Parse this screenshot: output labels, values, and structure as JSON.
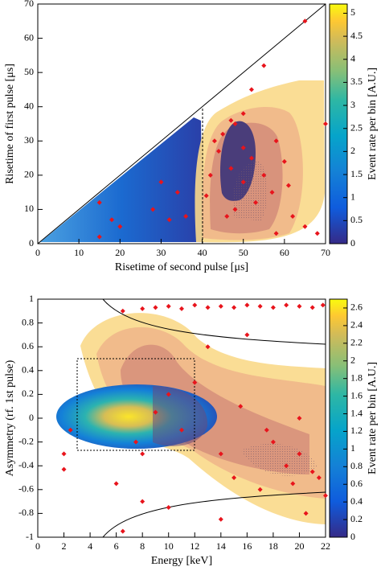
{
  "chart_data": [
    {
      "type": "scatter",
      "x_label": "Risetime of second pulse [μs]",
      "y_label": "Risetime of first pulse [μs]",
      "xlim": [
        0,
        70
      ],
      "ylim": [
        0,
        70
      ],
      "xticks": [
        0,
        10,
        20,
        30,
        40,
        50,
        60,
        70
      ],
      "yticks": [
        0,
        10,
        20,
        30,
        40,
        50,
        60,
        70
      ],
      "color": "#e8141c",
      "x": [
        65,
        55,
        50,
        48,
        45,
        43,
        50,
        52,
        47,
        60,
        55,
        50,
        57,
        61,
        53,
        48,
        46,
        15,
        18,
        15,
        20,
        30,
        28,
        32,
        36,
        34,
        62,
        65,
        58,
        52,
        47,
        44,
        42,
        41,
        58,
        70,
        68
      ],
      "y": [
        65,
        52,
        38,
        35,
        32,
        30,
        28,
        25,
        22,
        24,
        20,
        18,
        15,
        17,
        12,
        10,
        8,
        12,
        7,
        2,
        5,
        18,
        10,
        7,
        8,
        15,
        8,
        5,
        3,
        45,
        36,
        27,
        20,
        14,
        30,
        35,
        3
      ],
      "colorbar": {
        "label": "Event rate per bin [A.U.]",
        "lim": [
          0,
          5.2
        ],
        "ticks": [
          0,
          0.5,
          1,
          1.5,
          2,
          2.5,
          3,
          3.5,
          4,
          4.5,
          5
        ]
      }
    },
    {
      "type": "scatter",
      "x_label": "Energy [keV]",
      "y_label": "Asymmetry (rf. 1st pulse)",
      "xlim": [
        0,
        22
      ],
      "ylim": [
        -1,
        1
      ],
      "xticks": [
        0,
        2,
        4,
        6,
        8,
        10,
        12,
        14,
        16,
        18,
        20,
        22
      ],
      "yticks": [
        -1,
        -0.8,
        -0.6,
        -0.4,
        -0.2,
        0,
        0.2,
        0.4,
        0.6,
        0.8,
        1
      ],
      "color": "#e8141c",
      "x": [
        6.5,
        8,
        9,
        10,
        11,
        12,
        13,
        14,
        15,
        16,
        17,
        18,
        19,
        20,
        21,
        21.8,
        2,
        2,
        2.5,
        6,
        8,
        7.5,
        10,
        9,
        11,
        12,
        14,
        15,
        17,
        18,
        19,
        20,
        21,
        19.5,
        22,
        16,
        13,
        8,
        10,
        14,
        20.5,
        21.5,
        6.5,
        15.5,
        17.5,
        20
      ],
      "y": [
        0.9,
        0.92,
        0.93,
        0.94,
        0.92,
        0.95,
        0.93,
        0.94,
        0.93,
        0.95,
        0.94,
        0.93,
        0.95,
        0.94,
        0.93,
        0.95,
        -0.3,
        -0.43,
        -0.1,
        -0.55,
        -0.3,
        -0.2,
        0.2,
        0.05,
        -0.1,
        0.3,
        -0.3,
        -0.5,
        -0.6,
        -0.2,
        -0.4,
        -0.3,
        -0.45,
        -0.55,
        -0.65,
        0.7,
        0.6,
        -0.7,
        -0.75,
        -0.85,
        -0.8,
        -0.5,
        -0.95,
        0.1,
        -0.1,
        0
      ],
      "colorbar": {
        "label": "Event rate per bin [A.U.]",
        "lim": [
          0,
          2.7
        ],
        "ticks": [
          0,
          0.2,
          0.4,
          0.6,
          0.8,
          1,
          1.2,
          1.4,
          1.6,
          1.8,
          2,
          2.2,
          2.4,
          2.6
        ]
      }
    }
  ]
}
